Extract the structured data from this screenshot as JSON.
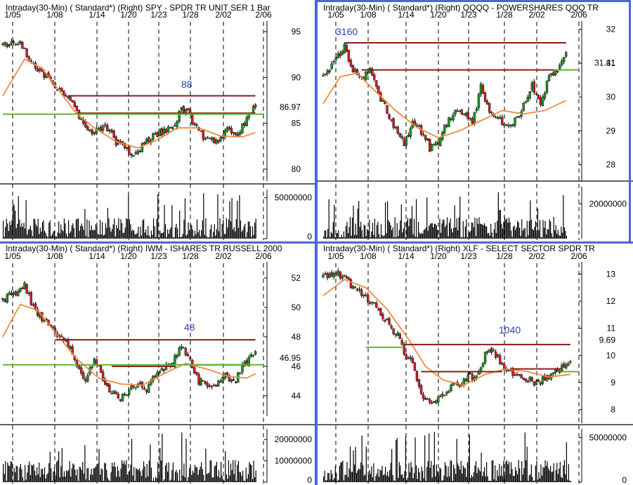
{
  "colors": {
    "background": "#ffffff",
    "candle_up": "#1f8f2a",
    "candle_down": "#c8202a",
    "moving_average": "#f08a3c",
    "resistance_line": "#8b1a1a",
    "support_line": "#5cb82e",
    "annotation": "#2b3fb0",
    "grid_dashed": "#000000",
    "volume": "#000000",
    "frame": "#4a66d9"
  },
  "panels": [
    {
      "id": "spy",
      "title": "Intraday(30-Min) ( Standard*)   (Right)   SPY - SPDR TR UNIT SER 1   Bar",
      "dates": [
        "1/05",
        "1/08",
        "1/14",
        "1/20",
        "1/23",
        "1/28",
        "2/02",
        "2/06"
      ],
      "price_ticks": [
        "95",
        "90",
        "85",
        "80"
      ],
      "volume_ticks": [
        "50000000",
        "0"
      ],
      "last_price": "86.97",
      "annotation": "88",
      "annotation_full": "",
      "legend": ""
    },
    {
      "id": "qqqq",
      "title": "Intraday(30-Min) ( Standard*)   (Right)   QQQQ - POWERSHARES QQQ TR",
      "dates": [
        "1/05",
        "1/08",
        "1/14",
        "1/20",
        "1/23",
        "1/28",
        "2/02",
        "2/06"
      ],
      "price_ticks": [
        "32",
        "31",
        "30",
        "29",
        "28"
      ],
      "volume_ticks": [
        "20000000"
      ],
      "last_price": "31.41",
      "annotation": "3160"
    },
    {
      "id": "iwm",
      "title": "Intraday(30-Min) ( Standard*)   (Right)   IWM - ISHARES TR RUSSELL 2000",
      "dates": [
        "1/05",
        "1/08",
        "1/14",
        "1/20",
        "1/23",
        "1/28",
        "2/02",
        "2/06"
      ],
      "price_ticks": [
        "52",
        "50",
        "48",
        "46",
        "44"
      ],
      "volume_ticks": [
        "20000000",
        "10000000",
        "0"
      ],
      "last_price": "46.95",
      "annotation": "48"
    },
    {
      "id": "xlf",
      "title": "Intraday(30-Min) ( Standard*)   (Right)   XLF - SELECT SECTOR SPDR TR",
      "dates": [
        "1/05",
        "1/08",
        "1/14",
        "1/20",
        "1/23",
        "1/28",
        "2/02",
        "2/06"
      ],
      "price_ticks": [
        "13",
        "12",
        "11",
        "10",
        "9",
        "8"
      ],
      "volume_ticks": [
        "50000000",
        "0"
      ],
      "last_price": "9.69",
      "annotation": "1040"
    }
  ],
  "chart_data": [
    {
      "type": "line",
      "title": "Intraday(30-Min) ( Standard*) (Right) SPY - SPDR TR UNIT SER 1 Bar",
      "x": [
        "1/05",
        "1/08",
        "1/14",
        "1/20",
        "1/23",
        "1/28",
        "2/02",
        "2/06"
      ],
      "ylim": [
        79,
        96
      ],
      "price_path": [
        [
          0,
          93.5
        ],
        [
          8,
          93.8
        ],
        [
          14,
          91.5
        ],
        [
          22,
          89.5
        ],
        [
          30,
          88
        ],
        [
          34,
          86.2
        ],
        [
          40,
          84.2
        ],
        [
          48,
          84.5
        ],
        [
          52,
          83
        ],
        [
          56,
          82.2
        ],
        [
          60,
          81.5
        ],
        [
          66,
          83
        ],
        [
          72,
          84
        ],
        [
          78,
          84.7
        ],
        [
          82,
          86.5
        ],
        [
          84,
          86.7
        ],
        [
          88,
          84.8
        ],
        [
          92,
          83.5
        ],
        [
          98,
          83
        ],
        [
          104,
          84.5
        ],
        [
          108,
          83.8
        ],
        [
          112,
          85.5
        ],
        [
          116,
          86.97
        ]
      ],
      "moving_average": [
        [
          0,
          88
        ],
        [
          10,
          92
        ],
        [
          18,
          91
        ],
        [
          26,
          88.5
        ],
        [
          34,
          86
        ],
        [
          42,
          84.5
        ],
        [
          52,
          83
        ],
        [
          62,
          82.3
        ],
        [
          72,
          83.3
        ],
        [
          80,
          84.5
        ],
        [
          90,
          84.5
        ],
        [
          100,
          83.6
        ],
        [
          110,
          83.5
        ],
        [
          116,
          84
        ]
      ],
      "resistance": {
        "value": 88,
        "from": 30,
        "to": 116
      },
      "resistance2": {
        "value": 86.1,
        "from": 34,
        "to": 116
      },
      "support": {
        "value": 86,
        "from": 0,
        "to": 120
      },
      "volume_max": 60000000
    },
    {
      "type": "line",
      "title": "Intraday(30-Min) ( Standard*) (Right) QQQQ - POWERSHARES QQQ TR",
      "x": [
        "1/05",
        "1/08",
        "1/14",
        "1/20",
        "1/23",
        "1/28",
        "2/02",
        "2/06"
      ],
      "ylim": [
        27.6,
        32.2
      ],
      "price_path": [
        [
          0,
          30.6
        ],
        [
          6,
          31.1
        ],
        [
          10,
          31.5
        ],
        [
          14,
          30.8
        ],
        [
          18,
          30.5
        ],
        [
          22,
          30.8
        ],
        [
          26,
          30.1
        ],
        [
          32,
          29.3
        ],
        [
          38,
          28.6
        ],
        [
          42,
          29.2
        ],
        [
          46,
          29.0
        ],
        [
          50,
          28.5
        ],
        [
          54,
          28.7
        ],
        [
          58,
          29.2
        ],
        [
          62,
          29.6
        ],
        [
          66,
          29.5
        ],
        [
          70,
          29.2
        ],
        [
          74,
          30.3
        ],
        [
          78,
          29.6
        ],
        [
          82,
          29.4
        ],
        [
          86,
          29.1
        ],
        [
          90,
          29.3
        ],
        [
          94,
          29.8
        ],
        [
          98,
          30.3
        ],
        [
          102,
          29.7
        ],
        [
          106,
          30.6
        ],
        [
          110,
          30.8
        ],
        [
          114,
          31.41
        ]
      ],
      "moving_average": [
        [
          0,
          29.8
        ],
        [
          8,
          30.6
        ],
        [
          16,
          30.7
        ],
        [
          24,
          30.2
        ],
        [
          34,
          29.6
        ],
        [
          44,
          29.1
        ],
        [
          54,
          28.8
        ],
        [
          64,
          29.0
        ],
        [
          74,
          29.3
        ],
        [
          84,
          29.6
        ],
        [
          94,
          29.5
        ],
        [
          104,
          29.6
        ],
        [
          114,
          29.9
        ]
      ],
      "resistance": {
        "value": 31.6,
        "from": 10,
        "to": 114
      },
      "resistance2": {
        "value": 30.8,
        "from": 18,
        "to": 110
      },
      "support": {
        "value": 30.8,
        "from": 108,
        "to": 120
      },
      "volume_max": 30000000
    },
    {
      "type": "line",
      "title": "Intraday(30-Min) ( Standard*) (Right) IWM - ISHARES TR RUSSELL 2000",
      "x": [
        "1/05",
        "1/08",
        "1/14",
        "1/20",
        "1/23",
        "1/28",
        "2/02",
        "2/06"
      ],
      "ylim": [
        42.8,
        53
      ],
      "price_path": [
        [
          0,
          50.5
        ],
        [
          6,
          51
        ],
        [
          10,
          51.5
        ],
        [
          14,
          50
        ],
        [
          20,
          49
        ],
        [
          26,
          48
        ],
        [
          30,
          47.5
        ],
        [
          34,
          46
        ],
        [
          38,
          45
        ],
        [
          42,
          46.5
        ],
        [
          48,
          44.5
        ],
        [
          54,
          43.8
        ],
        [
          60,
          44.8
        ],
        [
          66,
          44.5
        ],
        [
          72,
          45.8
        ],
        [
          78,
          46.2
        ],
        [
          82,
          47.5
        ],
        [
          86,
          46.5
        ],
        [
          90,
          45
        ],
        [
          96,
          44.5
        ],
        [
          102,
          45.3
        ],
        [
          106,
          44.8
        ],
        [
          110,
          46
        ],
        [
          116,
          46.95
        ]
      ],
      "moving_average": [
        [
          0,
          48
        ],
        [
          8,
          50.2
        ],
        [
          16,
          49.8
        ],
        [
          24,
          48.3
        ],
        [
          34,
          46.5
        ],
        [
          44,
          45.2
        ],
        [
          54,
          44.8
        ],
        [
          64,
          44.7
        ],
        [
          74,
          45.5
        ],
        [
          84,
          46.2
        ],
        [
          94,
          45.8
        ],
        [
          104,
          45.3
        ],
        [
          112,
          45.2
        ],
        [
          116,
          45.5
        ]
      ],
      "resistance": {
        "value": 47.8,
        "from": 24,
        "to": 116
      },
      "resistance2": {
        "value": 46,
        "from": 50,
        "to": 78
      },
      "resistance3": {
        "value": 46.1,
        "from": 88,
        "to": 112
      },
      "support": {
        "value": 46.1,
        "from": 0,
        "to": 120
      },
      "volume_max": 25000000
    },
    {
      "type": "line",
      "title": "Intraday(30-Min) ( Standard*) (Right) XLF - SELECT SECTOR SPDR TR",
      "x": [
        "1/05",
        "1/08",
        "1/14",
        "1/20",
        "1/23",
        "1/28",
        "2/02",
        "2/06"
      ],
      "ylim": [
        7.6,
        13.4
      ],
      "price_path": [
        [
          0,
          12.9
        ],
        [
          8,
          13.0
        ],
        [
          12,
          12.7
        ],
        [
          18,
          12.3
        ],
        [
          24,
          11.8
        ],
        [
          30,
          11.2
        ],
        [
          36,
          10.6
        ],
        [
          38,
          10.0
        ],
        [
          42,
          9.8
        ],
        [
          46,
          8.6
        ],
        [
          50,
          8.3
        ],
        [
          56,
          8.6
        ],
        [
          60,
          8.8
        ],
        [
          66,
          9.1
        ],
        [
          72,
          9.3
        ],
        [
          76,
          10.0
        ],
        [
          80,
          10.2
        ],
        [
          84,
          9.6
        ],
        [
          88,
          9.4
        ],
        [
          94,
          9.2
        ],
        [
          100,
          9.0
        ],
        [
          106,
          9.2
        ],
        [
          110,
          9.5
        ],
        [
          116,
          9.69
        ]
      ],
      "moving_average": [
        [
          0,
          12.2
        ],
        [
          10,
          12.8
        ],
        [
          20,
          12.5
        ],
        [
          30,
          11.7
        ],
        [
          40,
          10.6
        ],
        [
          48,
          9.6
        ],
        [
          56,
          9.1
        ],
        [
          66,
          8.9
        ],
        [
          76,
          9.3
        ],
        [
          86,
          9.5
        ],
        [
          96,
          9.4
        ],
        [
          106,
          9.2
        ],
        [
          116,
          9.3
        ]
      ],
      "resistance": {
        "value": 10.4,
        "from": 38,
        "to": 116
      },
      "resistance2": {
        "value": 9.4,
        "from": 46,
        "to": 84
      },
      "resistance3": {
        "value": 9.5,
        "from": 88,
        "to": 112
      },
      "support": {
        "value": 10.3,
        "from": 20,
        "to": 38
      },
      "support2": {
        "value": 9.4,
        "from": 112,
        "to": 120
      },
      "volume_max": 60000000
    }
  ]
}
